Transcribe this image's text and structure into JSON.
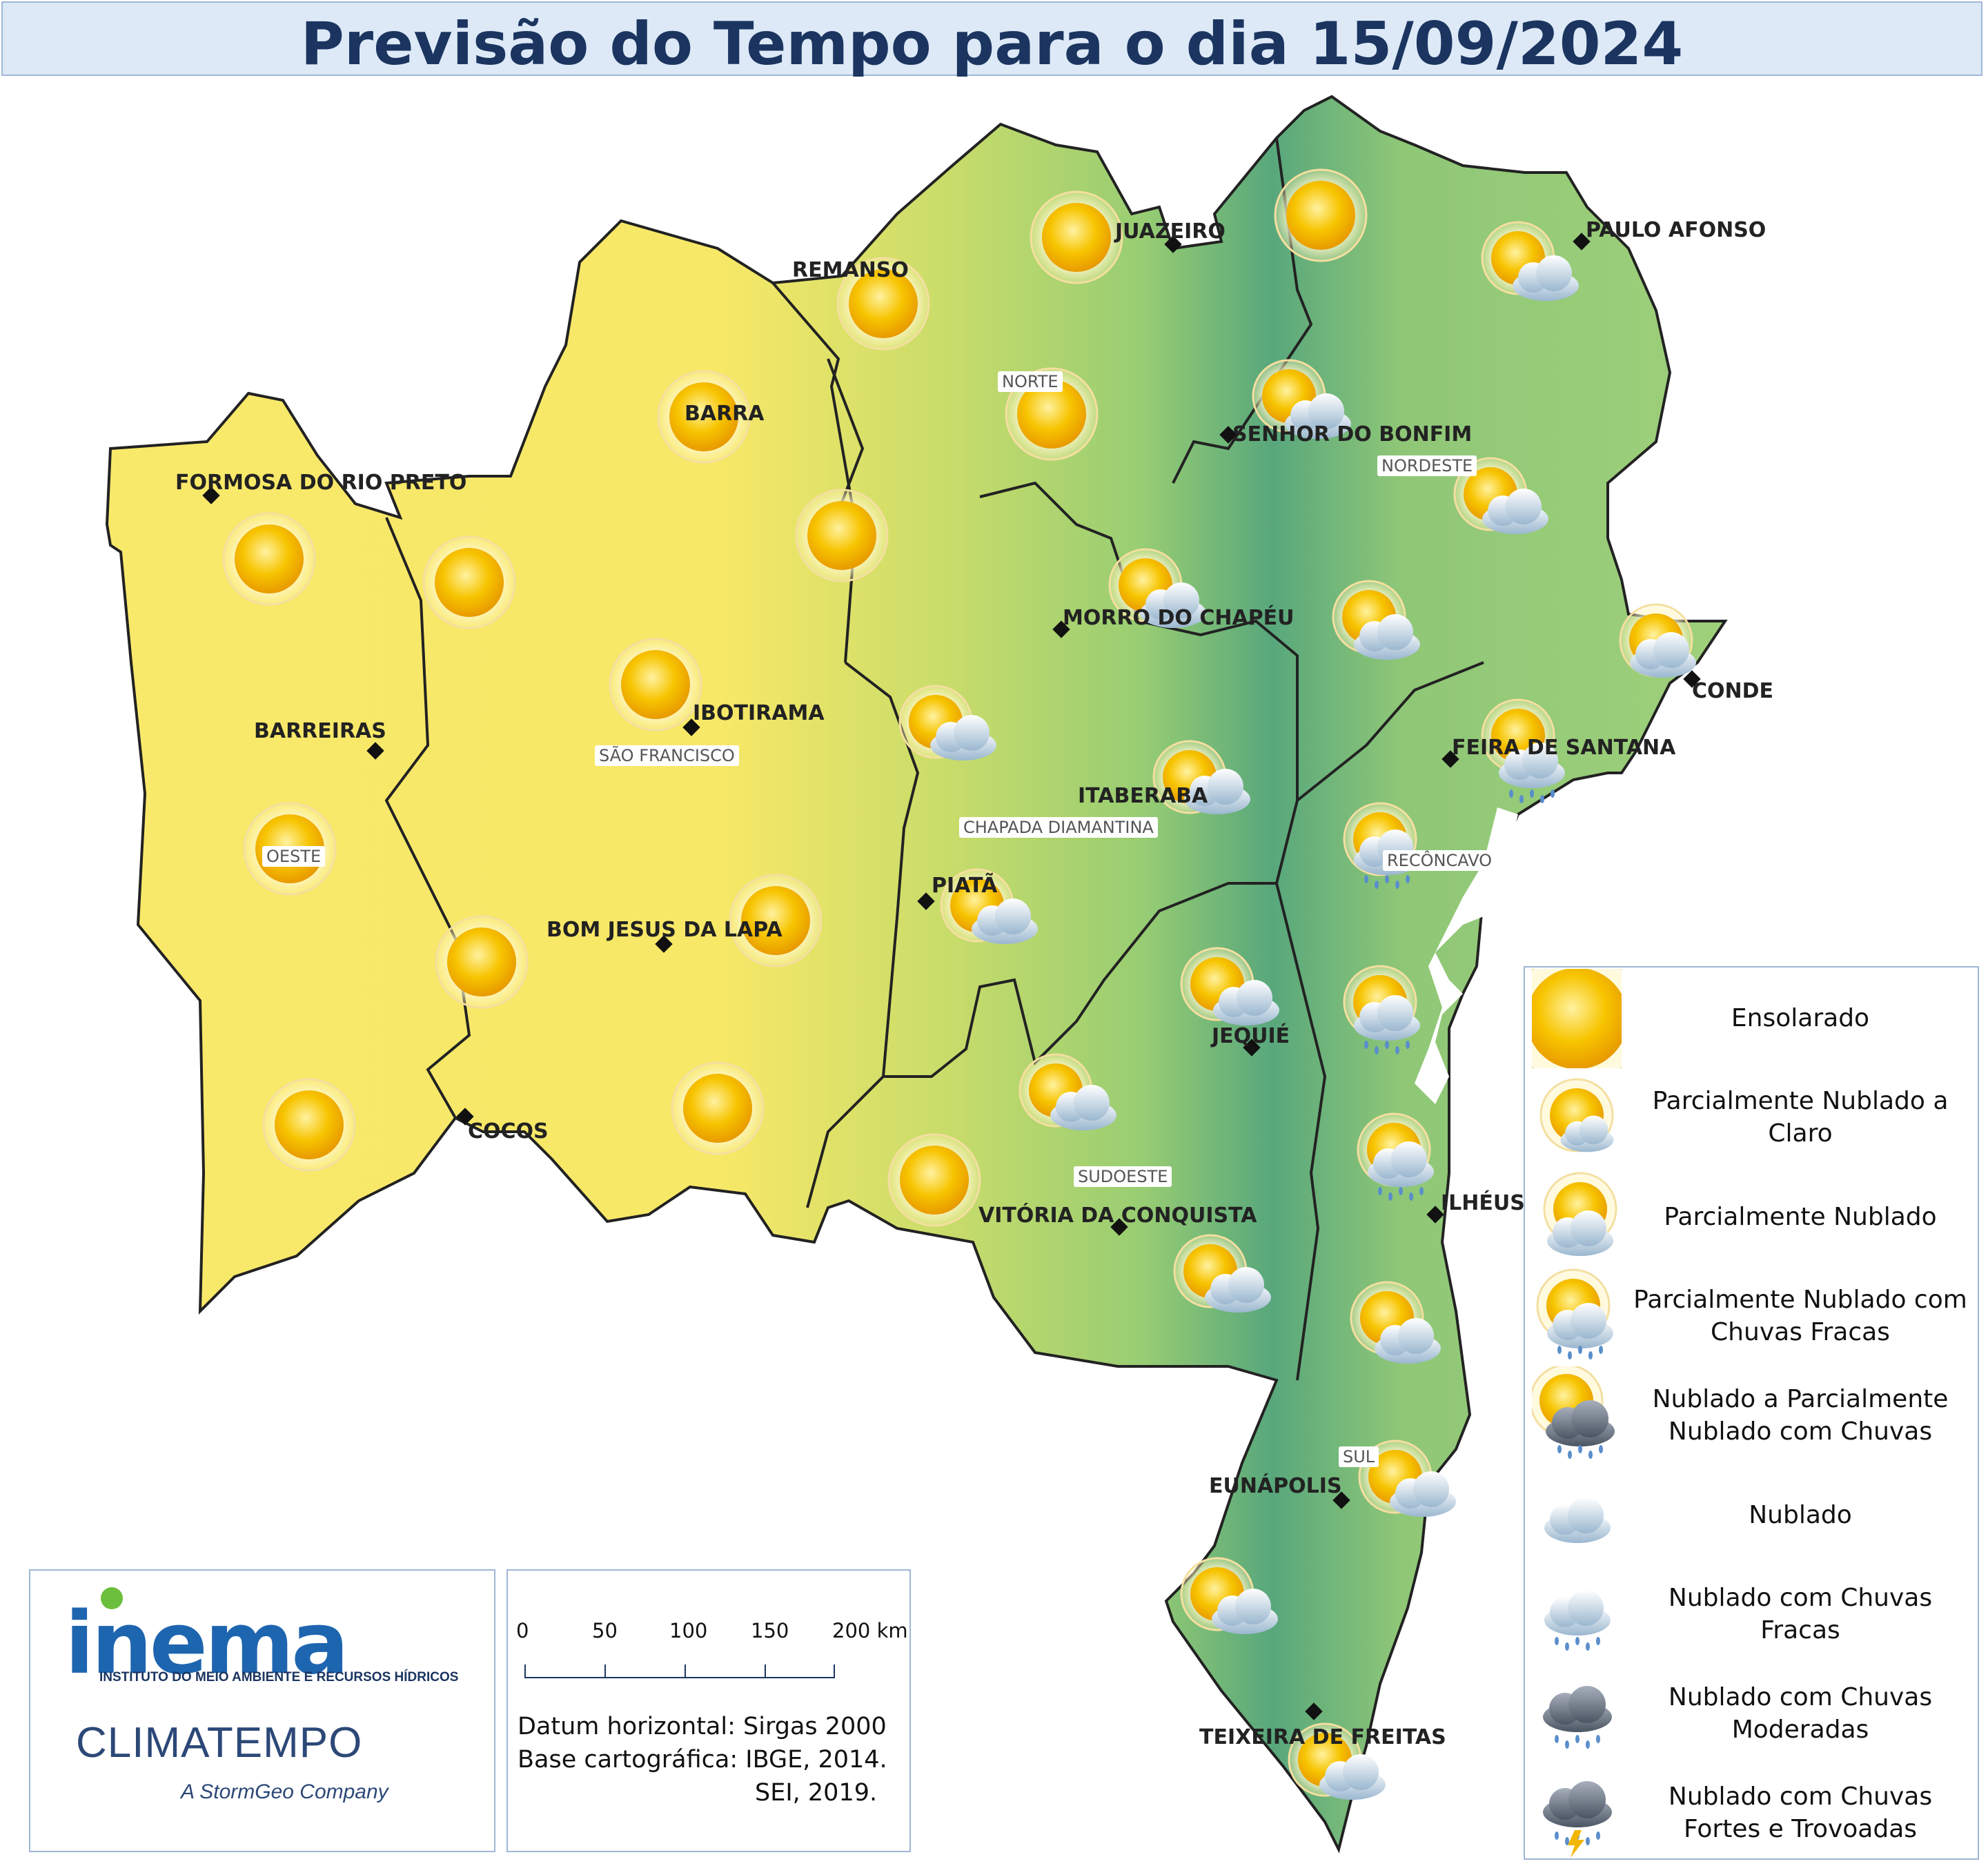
{
  "title": "Previsão do Tempo para o dia 15/09/2024",
  "colors": {
    "dry": "#f9e96b",
    "wet": "#4fa37c",
    "title_text": "#1b3560",
    "border": "#9fb6d6"
  },
  "cities": [
    {
      "name": "JUAZEIRO"
    },
    {
      "name": "PAULO AFONSO"
    },
    {
      "name": "REMANSO"
    },
    {
      "name": "BARRA"
    },
    {
      "name": "SENHOR DO BONFIM"
    },
    {
      "name": "FORMOSA DO RIO PRETO"
    },
    {
      "name": "MORRO DO CHAPÉU"
    },
    {
      "name": "CONDE"
    },
    {
      "name": "IBOTIRAMA"
    },
    {
      "name": "BARREIRAS"
    },
    {
      "name": "FEIRA DE SANTANA"
    },
    {
      "name": "ITABERABA"
    },
    {
      "name": "PIATÃ"
    },
    {
      "name": "BOM JESUS DA LAPA"
    },
    {
      "name": "JEQUIÉ"
    },
    {
      "name": "COCOS"
    },
    {
      "name": "ILHÉUS"
    },
    {
      "name": "VITÓRIA DA CONQUISTA"
    },
    {
      "name": "EUNÁPOLIS"
    },
    {
      "name": "TEIXEIRA DE FREITAS"
    }
  ],
  "regions": [
    "NORTE",
    "NORDESTE",
    "SÃO FRANCISCO",
    "OESTE",
    "CHAPADA DIAMANTINA",
    "RECÔNCAVO",
    "SUDOESTE",
    "SUL"
  ],
  "legend": [
    {
      "label": "Ensolarado",
      "icon": "sun-icon"
    },
    {
      "label": "Parcialmente Nublado a Claro",
      "icon": "sun-small-cloud-icon"
    },
    {
      "label": "Parcialmente Nublado",
      "icon": "sun-cloud-icon"
    },
    {
      "label": "Parcialmente Nublado com Chuvas Fracas",
      "icon": "sun-cloud-light-rain-icon"
    },
    {
      "label": "Nublado a Parcialmente Nublado com Chuvas",
      "icon": "sun-dark-cloud-rain-icon"
    },
    {
      "label": "Nublado",
      "icon": "cloud-icon"
    },
    {
      "label": "Nublado com Chuvas Fracas",
      "icon": "cloud-light-rain-icon"
    },
    {
      "label": "Nublado com Chuvas Moderadas",
      "icon": "dark-cloud-rain-icon"
    },
    {
      "label": "Nublado com Chuvas Fortes e Trovoadas",
      "icon": "storm-cloud-icon"
    }
  ],
  "scale": {
    "ticks": [
      "0",
      "50",
      "100",
      "150",
      "200 km"
    ]
  },
  "datum": {
    "line1": "Datum horizontal: Sirgas 2000",
    "line2": "Base cartográfica: IBGE, 2014.",
    "line3": "SEI, 2019."
  },
  "logos": {
    "inema": "inema",
    "inema_sub": "INSTITUTO DO MEIO AMBIENTE E RECURSOS HÍDRICOS",
    "climatempo": "CLIMATEMPO",
    "stormgeo": "A StormGeo Company"
  }
}
